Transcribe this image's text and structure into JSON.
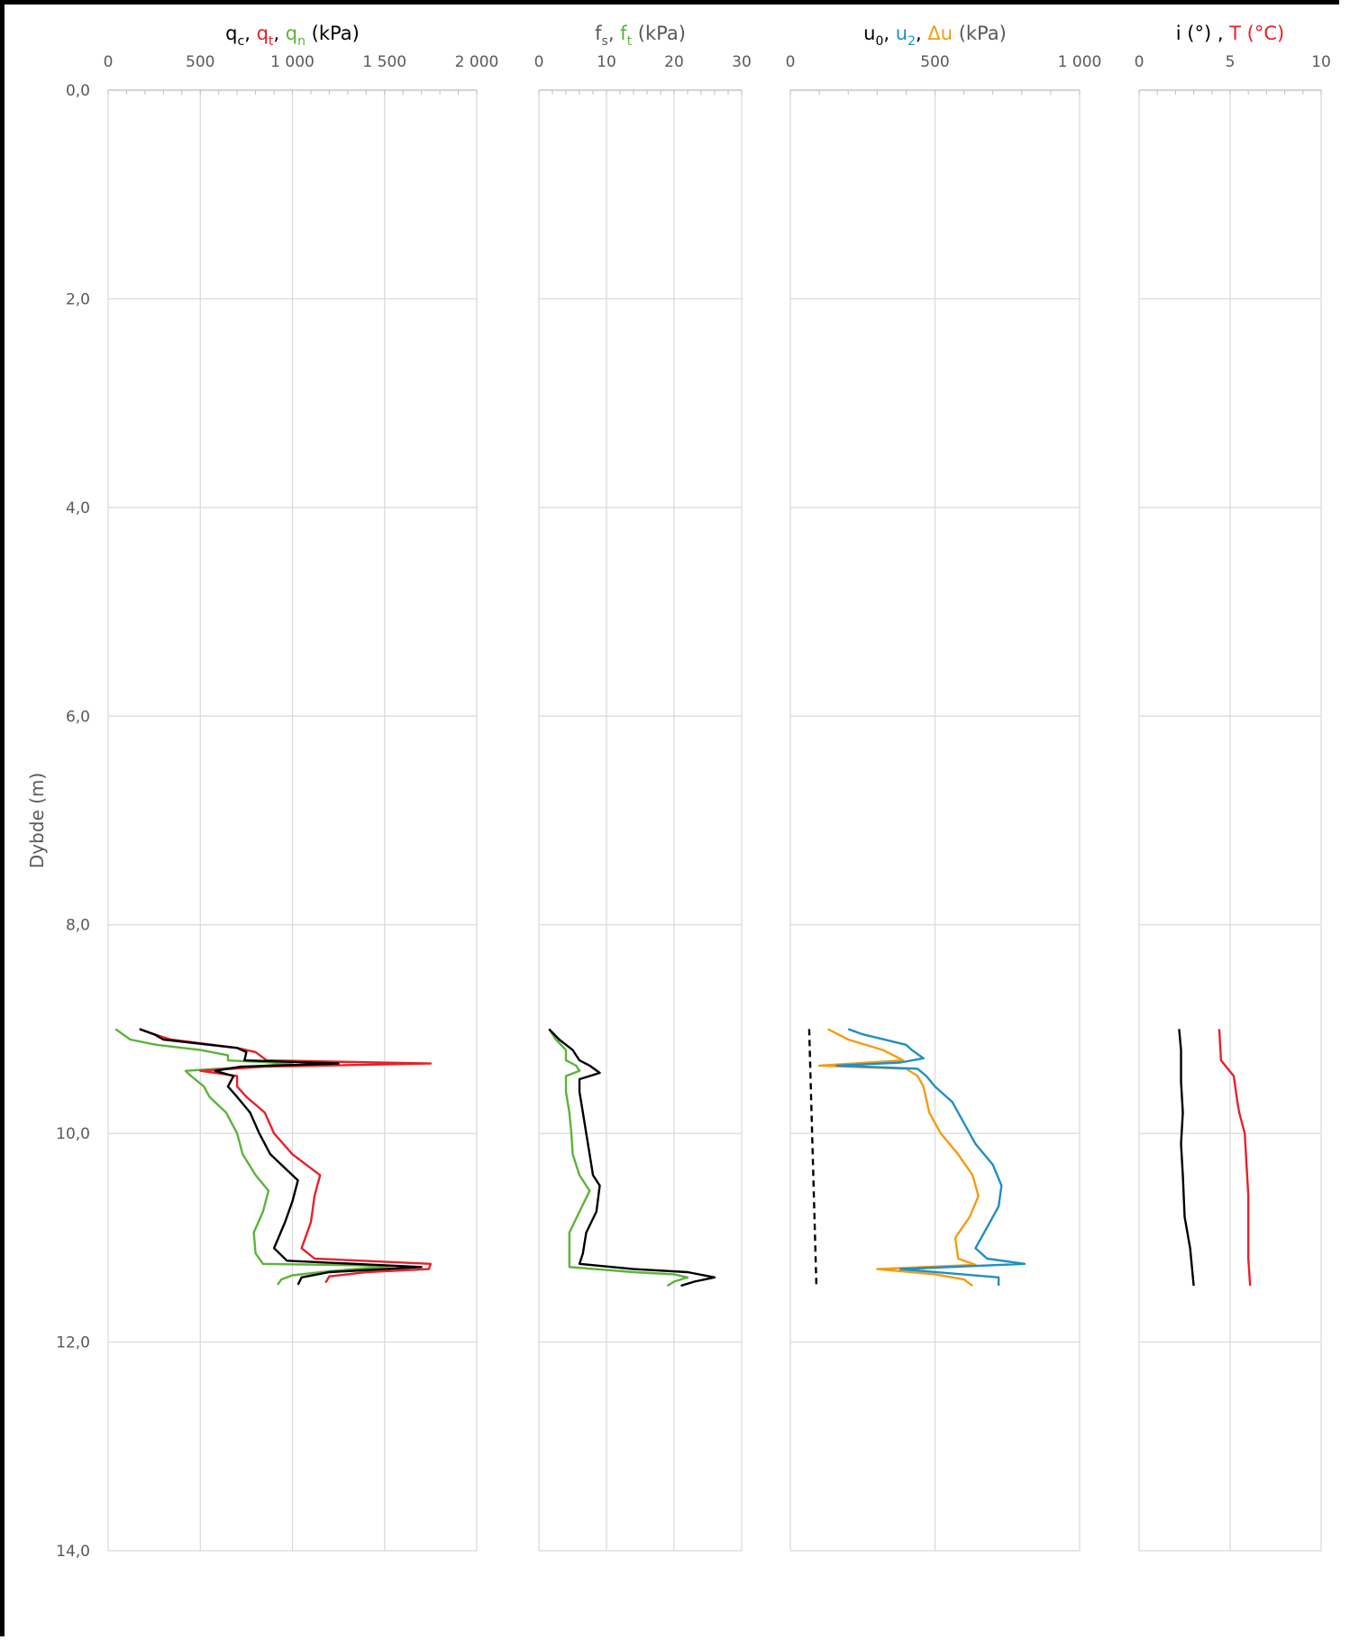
{
  "y_axis": {
    "label": "Dybde (m)",
    "ticks": [
      "0,0",
      "2,0",
      "4,0",
      "6,0",
      "8,0",
      "10,0",
      "12,0",
      "14,0"
    ]
  },
  "panels": [
    {
      "title_parts": [
        {
          "t": "q",
          "color": "#000000"
        },
        {
          "t": "c",
          "color": "#000000",
          "sub": true
        },
        {
          "t": ", ",
          "color": "#000000"
        },
        {
          "t": "q",
          "color": "#e8202a"
        },
        {
          "t": "t",
          "color": "#e8202a",
          "sub": true
        },
        {
          "t": ", ",
          "color": "#000000"
        },
        {
          "t": "q",
          "color": "#5db33b"
        },
        {
          "t": "n",
          "color": "#5db33b",
          "sub": true
        },
        {
          "t": " (kPa)",
          "color": "#000000"
        }
      ],
      "x_ticks": [
        "0",
        "500",
        "1 000",
        "1 500",
        "2 000"
      ]
    },
    {
      "title_parts": [
        {
          "t": "f",
          "color": "#595959"
        },
        {
          "t": "s",
          "color": "#595959",
          "sub": true
        },
        {
          "t": ", ",
          "color": "#595959"
        },
        {
          "t": "f",
          "color": "#5db33b"
        },
        {
          "t": "t",
          "color": "#5db33b",
          "sub": true
        },
        {
          "t": " (kPa)",
          "color": "#595959"
        }
      ],
      "x_ticks": [
        "0",
        "10",
        "20",
        "30"
      ]
    },
    {
      "title_parts": [
        {
          "t": "u",
          "color": "#000000"
        },
        {
          "t": "0",
          "color": "#000000",
          "sub": true
        },
        {
          "t": ", ",
          "color": "#000000"
        },
        {
          "t": "u",
          "color": "#1f8fc4"
        },
        {
          "t": "2",
          "color": "#1f8fc4",
          "sub": true
        },
        {
          "t": ", ",
          "color": "#000000"
        },
        {
          "t": "Δu",
          "color": "#f39c12"
        },
        {
          "t": " (kPa)",
          "color": "#595959"
        }
      ],
      "x_ticks": [
        "0",
        "500",
        "1 000"
      ]
    },
    {
      "title_parts": [
        {
          "t": "i (°) , ",
          "color": "#000000"
        },
        {
          "t": "T (°C)",
          "color": "#e8202a"
        }
      ],
      "x_ticks": [
        "0",
        "5",
        "10"
      ]
    }
  ],
  "chart_data": [
    {
      "type": "line",
      "orientation": "depth-profile",
      "x_range": [
        0,
        2000
      ],
      "y_range": [
        0,
        14
      ],
      "y_reversed": true,
      "grid": true,
      "series": [
        {
          "color": "#5db33b",
          "points": [
            [
              40,
              9.0
            ],
            [
              120,
              9.1
            ],
            [
              260,
              9.15
            ],
            [
              500,
              9.2
            ],
            [
              650,
              9.25
            ],
            [
              650,
              9.3
            ],
            [
              1000,
              9.33
            ],
            [
              780,
              9.36
            ],
            [
              420,
              9.4
            ],
            [
              450,
              9.45
            ],
            [
              520,
              9.55
            ],
            [
              550,
              9.65
            ],
            [
              640,
              9.8
            ],
            [
              700,
              10.0
            ],
            [
              730,
              10.2
            ],
            [
              800,
              10.4
            ],
            [
              870,
              10.55
            ],
            [
              840,
              10.75
            ],
            [
              790,
              10.95
            ],
            [
              800,
              11.15
            ],
            [
              840,
              11.25
            ],
            [
              1550,
              11.27
            ],
            [
              1200,
              11.32
            ],
            [
              1000,
              11.36
            ],
            [
              940,
              11.4
            ],
            [
              920,
              11.45
            ]
          ]
        },
        {
          "color": "#e8202a",
          "points": [
            [
              170,
              9.0
            ],
            [
              250,
              9.05
            ],
            [
              340,
              9.1
            ],
            [
              700,
              9.18
            ],
            [
              800,
              9.22
            ],
            [
              860,
              9.3
            ],
            [
              1750,
              9.33
            ],
            [
              850,
              9.36
            ],
            [
              500,
              9.4
            ],
            [
              700,
              9.45
            ],
            [
              700,
              9.55
            ],
            [
              750,
              9.65
            ],
            [
              850,
              9.8
            ],
            [
              900,
              10.0
            ],
            [
              1000,
              10.2
            ],
            [
              1150,
              10.4
            ],
            [
              1120,
              10.6
            ],
            [
              1100,
              10.85
            ],
            [
              1050,
              11.1
            ],
            [
              1120,
              11.2
            ],
            [
              1750,
              11.25
            ],
            [
              1740,
              11.3
            ],
            [
              1400,
              11.33
            ],
            [
              1200,
              11.37
            ],
            [
              1180,
              11.43
            ]
          ]
        },
        {
          "color": "#000000",
          "points": [
            [
              170,
              9.0
            ],
            [
              250,
              9.05
            ],
            [
              300,
              9.1
            ],
            [
              700,
              9.18
            ],
            [
              750,
              9.22
            ],
            [
              740,
              9.3
            ],
            [
              1250,
              9.33
            ],
            [
              720,
              9.36
            ],
            [
              580,
              9.4
            ],
            [
              680,
              9.45
            ],
            [
              650,
              9.55
            ],
            [
              700,
              9.65
            ],
            [
              770,
              9.8
            ],
            [
              820,
              10.0
            ],
            [
              880,
              10.2
            ],
            [
              1030,
              10.45
            ],
            [
              1000,
              10.65
            ],
            [
              960,
              10.85
            ],
            [
              900,
              11.1
            ],
            [
              970,
              11.22
            ],
            [
              1700,
              11.28
            ],
            [
              1200,
              11.33
            ],
            [
              1050,
              11.38
            ],
            [
              1030,
              11.45
            ]
          ]
        }
      ]
    },
    {
      "type": "line",
      "orientation": "depth-profile",
      "x_range": [
        0,
        30
      ],
      "y_range": [
        0,
        14
      ],
      "y_reversed": true,
      "grid": true,
      "series": [
        {
          "color": "#5db33b",
          "points": [
            [
              1.5,
              9.0
            ],
            [
              2.5,
              9.1
            ],
            [
              4,
              9.2
            ],
            [
              4,
              9.3
            ],
            [
              5.5,
              9.35
            ],
            [
              6,
              9.4
            ],
            [
              4,
              9.45
            ],
            [
              4,
              9.6
            ],
            [
              4.5,
              9.8
            ],
            [
              4.8,
              10.0
            ],
            [
              5,
              10.2
            ],
            [
              6,
              10.4
            ],
            [
              7.5,
              10.55
            ],
            [
              6,
              10.75
            ],
            [
              4.5,
              10.95
            ],
            [
              4.5,
              11.15
            ],
            [
              4.5,
              11.28
            ],
            [
              14,
              11.33
            ],
            [
              20,
              11.35
            ],
            [
              22,
              11.38
            ],
            [
              20,
              11.42
            ],
            [
              19,
              11.46
            ]
          ]
        },
        {
          "color": "#000000",
          "points": [
            [
              1.5,
              9.0
            ],
            [
              3,
              9.1
            ],
            [
              5,
              9.2
            ],
            [
              6,
              9.3
            ],
            [
              7.5,
              9.35
            ],
            [
              9,
              9.42
            ],
            [
              6,
              9.48
            ],
            [
              6,
              9.6
            ],
            [
              6.5,
              9.8
            ],
            [
              7,
              10.0
            ],
            [
              7.5,
              10.2
            ],
            [
              8,
              10.4
            ],
            [
              9,
              10.5
            ],
            [
              8.5,
              10.75
            ],
            [
              7,
              10.95
            ],
            [
              6.5,
              11.15
            ],
            [
              6,
              11.25
            ],
            [
              14,
              11.3
            ],
            [
              22,
              11.33
            ],
            [
              26,
              11.38
            ],
            [
              23,
              11.42
            ],
            [
              21,
              11.46
            ]
          ]
        }
      ]
    },
    {
      "type": "line",
      "orientation": "depth-profile",
      "x_range": [
        0,
        1000
      ],
      "y_range": [
        0,
        14
      ],
      "y_reversed": true,
      "grid": true,
      "series": [
        {
          "color": "#000000",
          "dashed": true,
          "points": [
            [
              65,
              9.0
            ],
            [
              90,
              11.46
            ]
          ]
        },
        {
          "color": "#f39c12",
          "points": [
            [
              130,
              9.0
            ],
            [
              200,
              9.1
            ],
            [
              320,
              9.2
            ],
            [
              390,
              9.3
            ],
            [
              100,
              9.35
            ],
            [
              400,
              9.38
            ],
            [
              440,
              9.45
            ],
            [
              460,
              9.55
            ],
            [
              480,
              9.8
            ],
            [
              520,
              10.0
            ],
            [
              580,
              10.2
            ],
            [
              630,
              10.4
            ],
            [
              650,
              10.6
            ],
            [
              620,
              10.8
            ],
            [
              570,
              11.0
            ],
            [
              580,
              11.2
            ],
            [
              640,
              11.26
            ],
            [
              300,
              11.3
            ],
            [
              500,
              11.35
            ],
            [
              600,
              11.4
            ],
            [
              630,
              11.46
            ]
          ]
        },
        {
          "color": "#1f8fc4",
          "points": [
            [
              200,
              9.0
            ],
            [
              250,
              9.05
            ],
            [
              400,
              9.15
            ],
            [
              420,
              9.2
            ],
            [
              460,
              9.28
            ],
            [
              380,
              9.32
            ],
            [
              160,
              9.35
            ],
            [
              440,
              9.38
            ],
            [
              470,
              9.45
            ],
            [
              500,
              9.55
            ],
            [
              560,
              9.7
            ],
            [
              600,
              9.9
            ],
            [
              640,
              10.1
            ],
            [
              700,
              10.3
            ],
            [
              730,
              10.5
            ],
            [
              720,
              10.7
            ],
            [
              680,
              10.9
            ],
            [
              640,
              11.1
            ],
            [
              680,
              11.2
            ],
            [
              810,
              11.25
            ],
            [
              380,
              11.3
            ],
            [
              720,
              11.38
            ],
            [
              720,
              11.46
            ]
          ]
        }
      ]
    },
    {
      "type": "line",
      "orientation": "depth-profile",
      "x_range": [
        0,
        10
      ],
      "y_range": [
        0,
        14
      ],
      "y_reversed": true,
      "grid": true,
      "series": [
        {
          "color": "#000000",
          "points": [
            [
              2.2,
              9.0
            ],
            [
              2.3,
              9.2
            ],
            [
              2.3,
              9.5
            ],
            [
              2.4,
              9.8
            ],
            [
              2.3,
              10.1
            ],
            [
              2.4,
              10.4
            ],
            [
              2.5,
              10.8
            ],
            [
              2.8,
              11.1
            ],
            [
              3.0,
              11.46
            ]
          ]
        },
        {
          "color": "#e8202a",
          "points": [
            [
              4.4,
              9.0
            ],
            [
              4.5,
              9.3
            ],
            [
              5.2,
              9.45
            ],
            [
              5.4,
              9.7
            ],
            [
              5.5,
              9.8
            ],
            [
              5.8,
              10.0
            ],
            [
              5.9,
              10.3
            ],
            [
              6.0,
              10.6
            ],
            [
              6.0,
              10.9
            ],
            [
              6.0,
              11.2
            ],
            [
              6.1,
              11.46
            ]
          ]
        }
      ]
    }
  ]
}
